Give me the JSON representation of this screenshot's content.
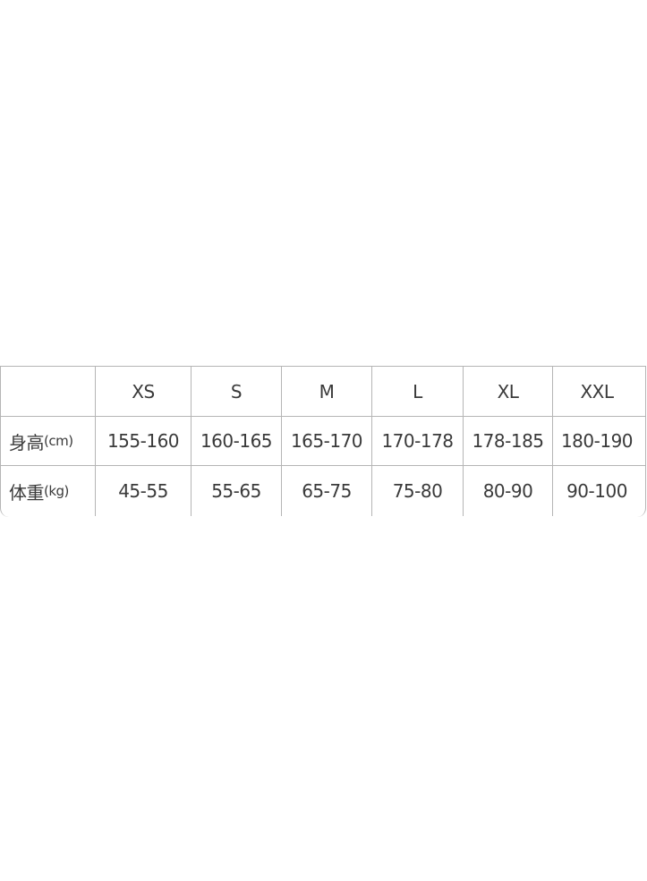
{
  "size_table": {
    "headers": [
      "XS",
      "S",
      "M",
      "L",
      "XL",
      "XXL"
    ],
    "rows": [
      {
        "label": "身高",
        "unit": "(cm)",
        "values": [
          "155-160",
          "160-165",
          "165-170",
          "170-178",
          "178-185",
          "180-190"
        ]
      },
      {
        "label": "体重",
        "unit": "(kg)",
        "values": [
          "45-55",
          "55-65",
          "65-75",
          "75-80",
          "80-90",
          "90-100"
        ]
      }
    ]
  }
}
